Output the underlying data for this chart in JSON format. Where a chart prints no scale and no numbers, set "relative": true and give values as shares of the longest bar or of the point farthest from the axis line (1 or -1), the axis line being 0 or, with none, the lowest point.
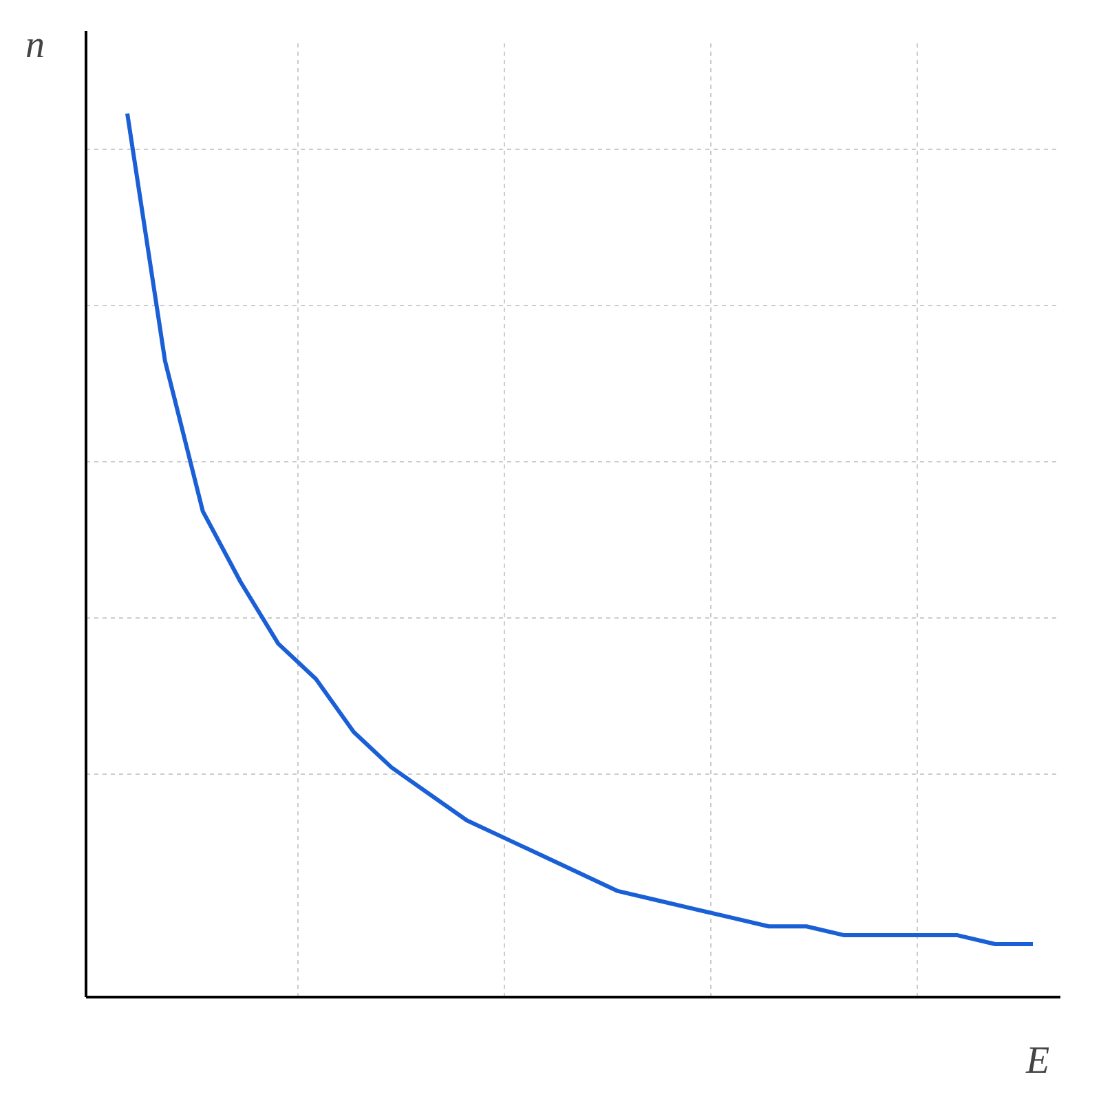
{
  "chart_data": {
    "type": "line",
    "relative": true,
    "xlabel": "E",
    "ylabel": "n",
    "grid": true,
    "tick_labels": false,
    "categories": [
      null,
      null,
      null,
      null,
      null,
      null,
      null,
      null,
      null,
      null,
      null,
      null,
      null,
      null,
      null,
      null,
      null,
      null,
      null,
      null,
      null,
      null,
      null,
      null,
      null
    ],
    "series": [
      {
        "color": "#1a5fd6",
        "values": [
          1.0,
          0.72,
          0.55,
          0.47,
          0.4,
          0.36,
          0.3,
          0.26,
          0.23,
          0.2,
          0.18,
          0.16,
          0.14,
          0.12,
          0.11,
          0.1,
          0.09,
          0.08,
          0.08,
          0.07,
          0.07,
          0.07,
          0.07,
          0.06,
          0.06
        ]
      }
    ]
  }
}
